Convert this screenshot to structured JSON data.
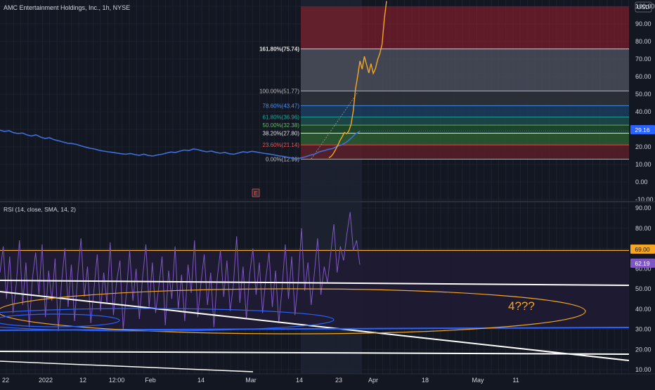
{
  "header": {
    "symbol_title": "AMC Entertainment Holdings, Inc., 1h, NYSE",
    "currency": "USD"
  },
  "rsi_legend": "RSI (14, close, SMA, 14, 2)",
  "annotation": "4???",
  "marker_glyph": "E",
  "colors": {
    "background": "#131722",
    "price_line": "#3d6fd9",
    "projection_line": "#f5a623",
    "rsi_line": "#7e57c2",
    "rsi_band": "#f5a623",
    "fib_red": "#7a1f2b",
    "fib_gray": "#4a4e5a",
    "price_badge": "#2962ff",
    "rsi_badge": "#7e57c2",
    "level_badge": "#f5a623"
  },
  "badges": {
    "price": "29.16",
    "rsi_level": "69.00",
    "rsi_value": "62.19"
  },
  "chart_data": [
    {
      "type": "line",
      "title": "AMC Entertainment Holdings, Inc., 1h, NYSE",
      "y_ticks": [
        "100.00",
        "90.00",
        "80.00",
        "70.00",
        "60.00",
        "50.00",
        "40.00",
        "30.00",
        "20.00",
        "10.00",
        "0.00",
        "-10.00"
      ],
      "ylim": [
        -10,
        100
      ],
      "last_price": 29.16,
      "fib_levels": [
        {
          "label": "161.80%(75.74)",
          "value": 75.74
        },
        {
          "label": "100.00%(51.77)",
          "value": 51.77
        },
        {
          "label": "78.60%(43.47)",
          "value": 43.47
        },
        {
          "label": "61.80%(36.96)",
          "value": 36.96
        },
        {
          "label": "50.00%(32.38)",
          "value": 32.38
        },
        {
          "label": "38.20%(27.80)",
          "value": 27.8
        },
        {
          "label": "23.60%(21.14)",
          "value": 21.14
        },
        {
          "label": "0.00%(12.99)",
          "value": 12.99
        }
      ],
      "series": [
        {
          "values": [
            29.5,
            28.8,
            29.2,
            28.1,
            27.6,
            27.9,
            26.8,
            26.2,
            26.9,
            25.6,
            24.8,
            25.2,
            24.1,
            23.5,
            22.8,
            22.1,
            21.9,
            21.4,
            20.6,
            19.9,
            19.2,
            18.8,
            18.1,
            17.6,
            17.2,
            16.9,
            16.5,
            16.1,
            15.8,
            16.2,
            15.6,
            15.2,
            15.9,
            15.1,
            14.8,
            15.4,
            15.8,
            16.5,
            17.1,
            16.8,
            17.6,
            18.2,
            17.9,
            18.8,
            18.4,
            17.7,
            17.2,
            17.6,
            16.9,
            16.4,
            16.8,
            16.1,
            15.8,
            16.5,
            17.2,
            16.9,
            17.5,
            17.1,
            16.6,
            16.2,
            15.9,
            15.4,
            14.9,
            14.6,
            14.1,
            13.6,
            13.2,
            13.8,
            14.4,
            15.3,
            15.9,
            17.2,
            17.8,
            18.6,
            19.1,
            20.4,
            21.2,
            22.6,
            24.8,
            27.4,
            28.9
          ]
        },
        {
          "values": [
            13.8,
            14.6,
            16.2,
            18.5,
            20.9,
            23.7,
            25.8,
            28.2,
            27.5,
            29.1,
            32.8,
            40.5,
            52.8,
            60.4,
            68.9,
            64.2,
            71.5,
            66.8,
            62.1,
            67.4,
            61.8,
            64.5,
            69.7,
            73.2,
            78.5,
            92.6,
            103.0
          ]
        }
      ]
    },
    {
      "type": "line",
      "title": "RSI (14, close, SMA, 14, 2)",
      "y_ticks": [
        "90.00",
        "80.00",
        "70.00",
        "60.00",
        "50.00",
        "40.00",
        "30.00",
        "20.00",
        "10.00"
      ],
      "ylim": [
        10,
        90
      ],
      "level": 69.0,
      "last_value": 62.19,
      "x_ticks": [
        "22",
        "2022",
        "12",
        "12:00",
        "Feb",
        "14",
        "Mar",
        "14",
        "23",
        "Apr",
        "18",
        "May",
        "11"
      ],
      "series": [
        {
          "values": [
            58,
            71,
            45,
            66,
            38,
            52,
            74,
            42,
            63,
            31,
            55,
            68,
            47,
            72,
            36,
            59,
            44,
            65,
            29,
            53,
            70,
            41,
            62,
            34,
            57,
            75,
            46,
            61,
            33,
            50,
            67,
            39,
            58,
            43,
            73,
            37,
            54,
            64,
            30,
            48,
            69,
            44,
            60,
            35,
            56,
            72,
            41,
            63,
            38,
            51,
            66,
            32,
            59,
            45,
            71,
            40,
            57,
            34,
            62,
            48,
            74,
            36,
            53,
            67,
            42,
            58,
            31,
            55,
            69,
            46,
            64,
            39,
            52,
            76,
            43,
            61,
            35,
            57,
            70,
            47,
            63,
            38,
            55,
            68,
            41,
            59,
            33,
            50,
            72,
            45,
            66,
            37,
            54,
            80,
            49,
            63,
            42,
            58,
            75,
            47,
            61,
            53,
            67,
            82,
            58,
            71,
            64,
            77,
            88,
            69,
            74,
            62
          ]
        }
      ]
    }
  ]
}
